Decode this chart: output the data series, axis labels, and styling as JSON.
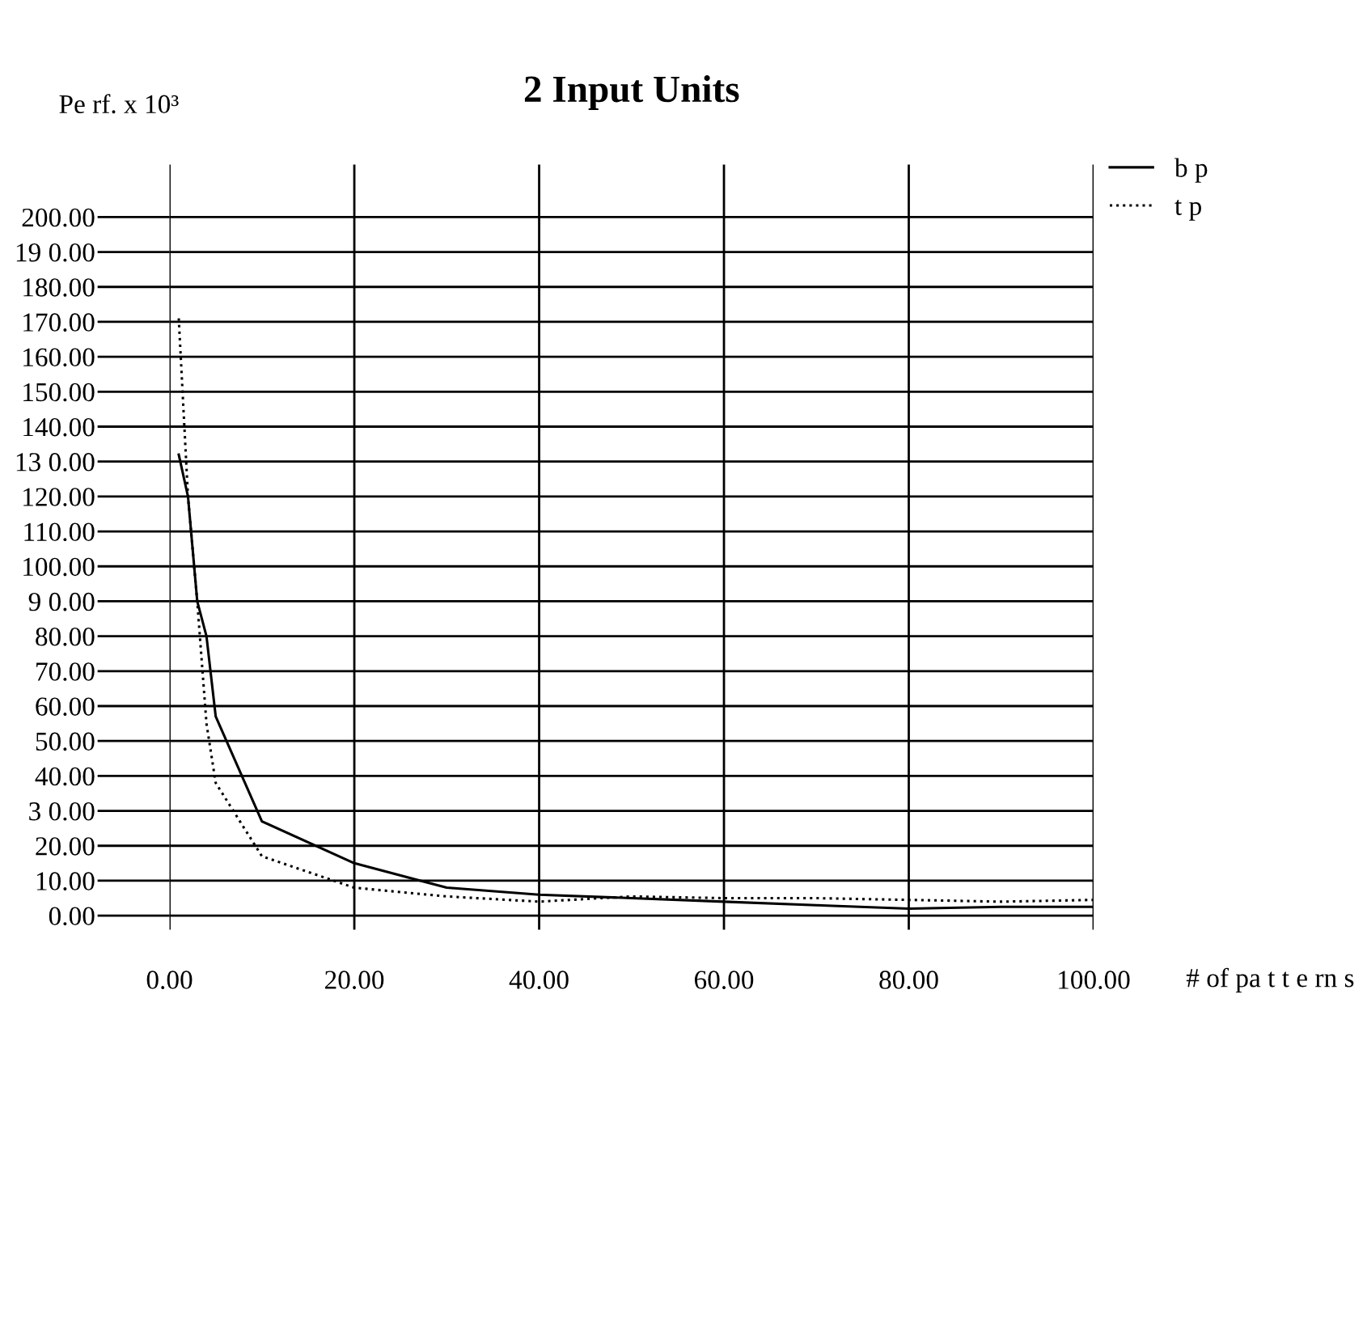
{
  "chart_data": {
    "type": "line",
    "title": "2 Input Units",
    "xlabel": "# of pa t t e rn s",
    "ylabel": "Pe rf. x 10³",
    "xlim": [
      0,
      100
    ],
    "ylim": [
      -4,
      215
    ],
    "xticks": [
      {
        "value": 0,
        "label": "0.00"
      },
      {
        "value": 20,
        "label": "20.00"
      },
      {
        "value": 40,
        "label": "40.00"
      },
      {
        "value": 60,
        "label": "60.00"
      },
      {
        "value": 80,
        "label": "80.00"
      },
      {
        "value": 100,
        "label": "100.00"
      }
    ],
    "yticks": [
      {
        "value": 0,
        "label": "0.00"
      },
      {
        "value": 10,
        "label": "10.00"
      },
      {
        "value": 20,
        "label": "20.00"
      },
      {
        "value": 30,
        "label": "3 0.00"
      },
      {
        "value": 40,
        "label": "40.00"
      },
      {
        "value": 50,
        "label": "50.00"
      },
      {
        "value": 60,
        "label": "60.00"
      },
      {
        "value": 70,
        "label": "70.00"
      },
      {
        "value": 80,
        "label": "80.00"
      },
      {
        "value": 90,
        "label": "9 0.00"
      },
      {
        "value": 100,
        "label": "100.00"
      },
      {
        "value": 110,
        "label": "110.00"
      },
      {
        "value": 120,
        "label": "120.00"
      },
      {
        "value": 130,
        "label": "13 0.00"
      },
      {
        "value": 140,
        "label": "140.00"
      },
      {
        "value": 150,
        "label": "150.00"
      },
      {
        "value": 160,
        "label": "160.00"
      },
      {
        "value": 170,
        "label": "170.00"
      },
      {
        "value": 180,
        "label": "180.00"
      },
      {
        "value": 190,
        "label": "19 0.00"
      },
      {
        "value": 200,
        "label": "200.00"
      }
    ],
    "grid": true,
    "legend": "top right",
    "marker": "none",
    "x": [
      1,
      2,
      3,
      4,
      5,
      10,
      20,
      30,
      40,
      50,
      60,
      70,
      80,
      90,
      100
    ],
    "series": [
      {
        "name": "b p",
        "color": "#000000",
        "line_style": "solid",
        "values": [
          132,
          120,
          90,
          80,
          57,
          27,
          15,
          8,
          6,
          5,
          4,
          3,
          2,
          2.5,
          2.5
        ]
      },
      {
        "name": "t p",
        "color": "#000000",
        "line_style": "dotted",
        "values": [
          171,
          120,
          90,
          55,
          38,
          17,
          8,
          5.5,
          4,
          5.5,
          5,
          5,
          4.5,
          4,
          4.5
        ]
      }
    ]
  }
}
